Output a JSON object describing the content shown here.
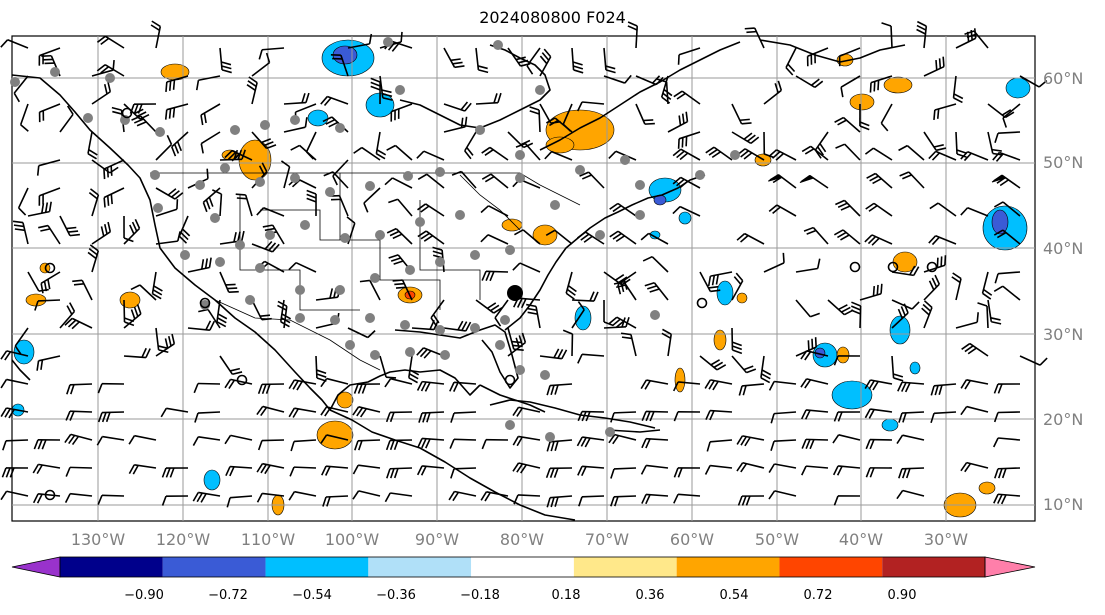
{
  "title": "2024080800 F024",
  "longitude_labels": [
    "130°W",
    "120°W",
    "110°W",
    "100°W",
    "90°W",
    "80°W",
    "70°W",
    "60°W",
    "50°W",
    "40°W",
    "30°W"
  ],
  "latitude_labels": [
    "60°N",
    "50°N",
    "40°N",
    "30°N",
    "20°N",
    "10°N"
  ],
  "colorbar": {
    "ticks": [
      "−0.90",
      "−0.72",
      "−0.54",
      "−0.36",
      "−0.18",
      "0.18",
      "0.36",
      "0.54",
      "0.72",
      "0.90"
    ],
    "colors": [
      "#9932cc",
      "#00008b",
      "#3a5bd6",
      "#00bfff",
      "#b0e0f8",
      "#ffffff",
      "#ffe88a",
      "#ffa500",
      "#ff4500",
      "#b22222",
      "#ff7faa"
    ]
  },
  "colors": {
    "positive_shading": "#ffa500",
    "negative_shading": "#00bfff",
    "station_dot": "#808080",
    "highlight_dot": "#000000",
    "grid": "#9a9a9a"
  }
}
